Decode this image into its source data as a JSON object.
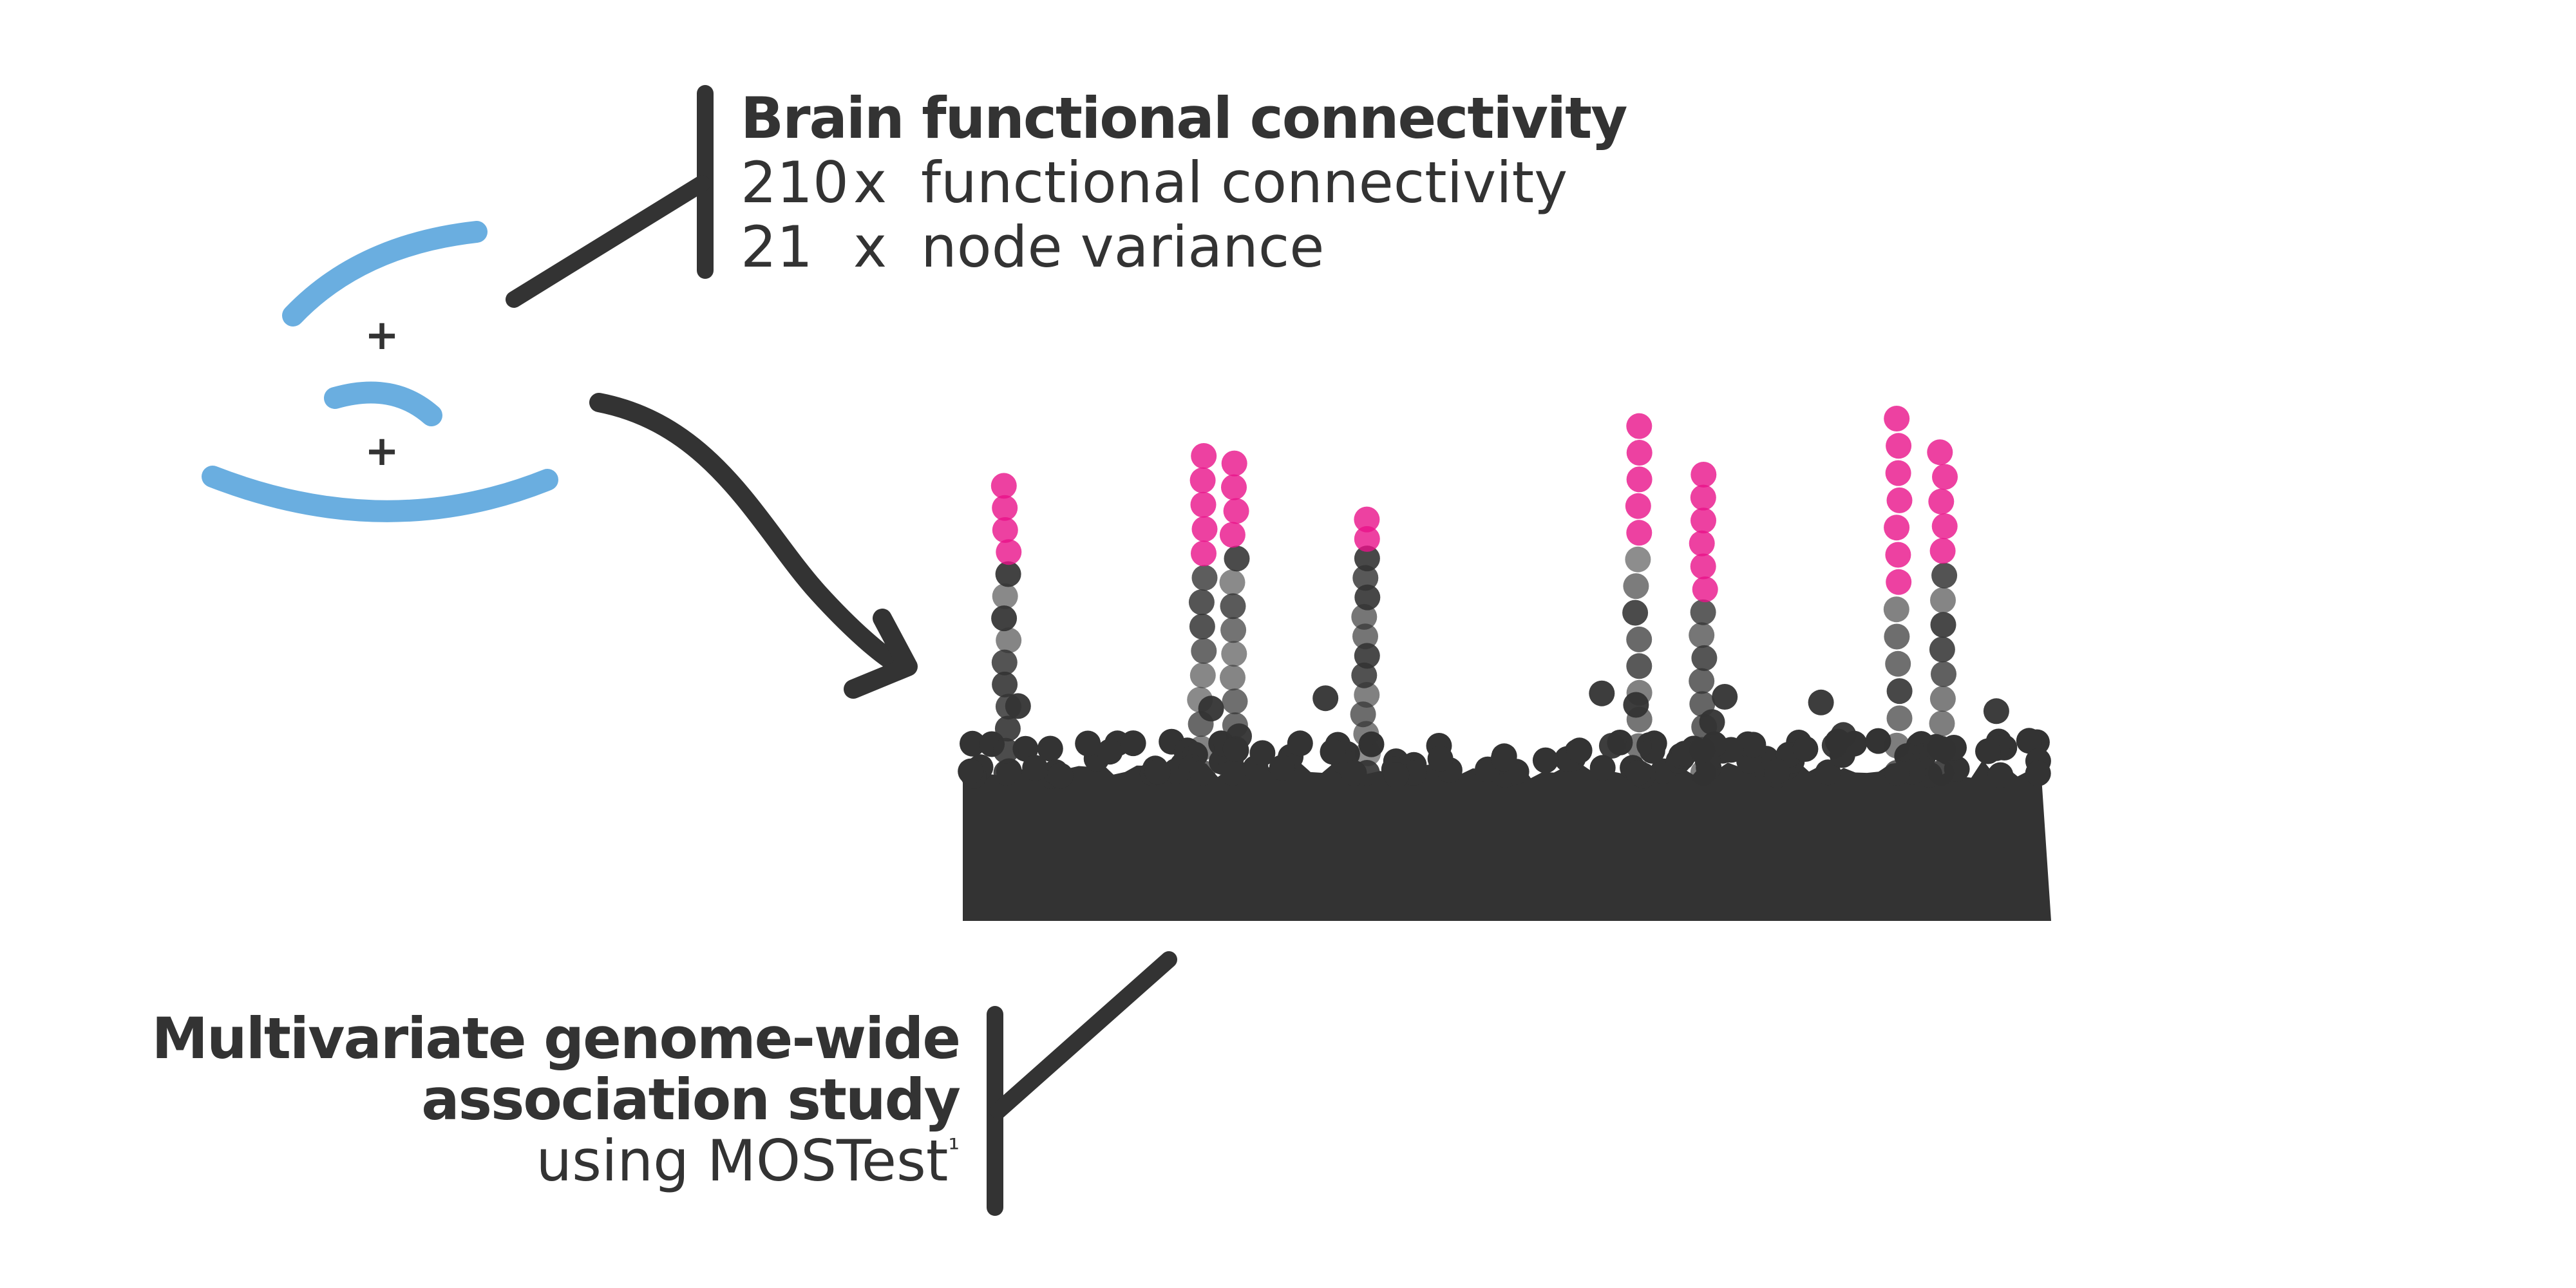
{
  "header": {
    "title": "Brain functional connectivity",
    "rows": [
      {
        "count": "210",
        "times": "x",
        "label": "functional connectivity"
      },
      {
        "count": "21",
        "times": "x",
        "label": "node variance"
      }
    ]
  },
  "brain_sketch": {
    "plus_1": "+",
    "plus_2": "+",
    "color": "#6aaee0"
  },
  "footer": {
    "line1": "Multivariate genome-wide",
    "line2": "association study",
    "line3": "using MOSTest",
    "footnote_mark": "¹"
  },
  "manhattan_plot": {
    "type": "scatter",
    "base_color": "#333333",
    "significant_color": "#e8118a",
    "peaks": [
      {
        "pos": 0.04,
        "height": 0.82,
        "significant_points": 4
      },
      {
        "pos": 0.22,
        "height": 0.9,
        "significant_points": 5
      },
      {
        "pos": 0.25,
        "height": 0.88,
        "significant_points": 4
      },
      {
        "pos": 0.37,
        "height": 0.73,
        "significant_points": 2
      },
      {
        "pos": 0.62,
        "height": 0.98,
        "significant_points": 5
      },
      {
        "pos": 0.68,
        "height": 0.85,
        "significant_points": 6
      },
      {
        "pos": 0.86,
        "height": 1.0,
        "significant_points": 7
      },
      {
        "pos": 0.9,
        "height": 0.91,
        "significant_points": 5
      }
    ]
  }
}
